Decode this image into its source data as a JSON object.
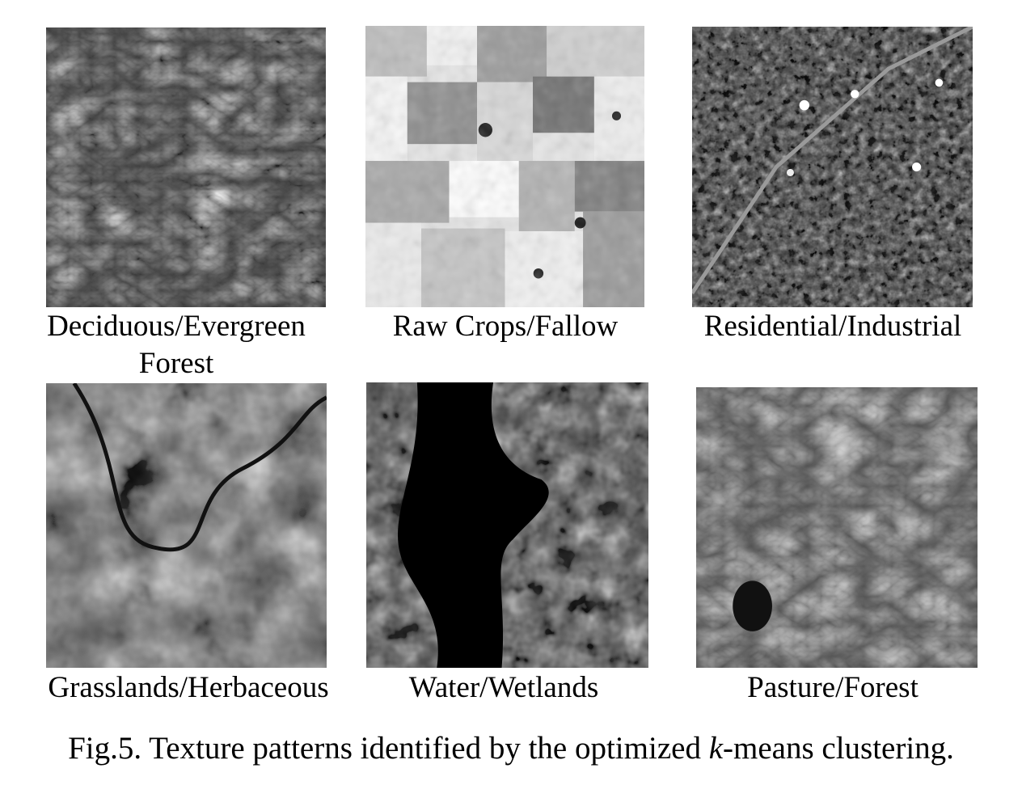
{
  "figure": {
    "panels": [
      {
        "label_line1": "Deciduous/Evergreen",
        "label_line2": "Forest"
      },
      {
        "label_line1": "Raw Crops/Fallow"
      },
      {
        "label_line1": "Residential/Industrial"
      },
      {
        "label_line1": "Grasslands/Herbaceous"
      },
      {
        "label_line1": "Water/Wetlands"
      },
      {
        "label_line1": "Pasture/Forest"
      }
    ],
    "caption": {
      "prefix": "Fig.5. Texture patterns identified by the optimized ",
      "italic": "k",
      "suffix": "-means clustering."
    }
  }
}
